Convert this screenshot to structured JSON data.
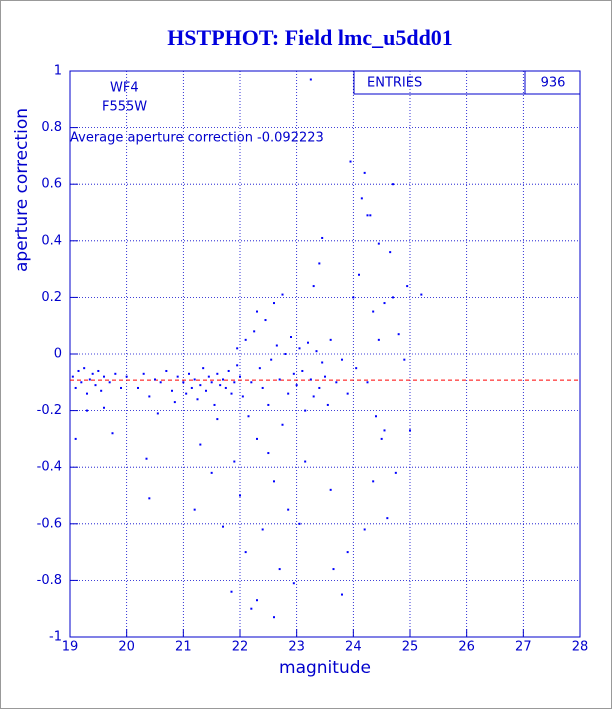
{
  "chart_data": {
    "type": "scatter",
    "title": "HSTPHOT: Field lmc_u5dd01",
    "x_label": "magnitude",
    "y_label": "aperture correction",
    "annotations": [
      "WF4",
      "F555W",
      "Average aperture correction -0.092223"
    ],
    "stats": {
      "label": "ENTRIES",
      "value": 936
    },
    "average_line": -0.092223,
    "average_color": "#ff0000",
    "color": "#0000ff",
    "grid": true,
    "xlim": [
      19,
      28
    ],
    "ylim": [
      -1,
      1
    ],
    "xticks": [
      19,
      20,
      21,
      22,
      23,
      24,
      25,
      26,
      27,
      28
    ],
    "yticks": [
      -1,
      -0.8,
      -0.6,
      -0.4,
      -0.2,
      0,
      0.2,
      0.4,
      0.6,
      0.8,
      1
    ],
    "x": [
      19.05,
      19.1,
      19.15,
      19.2,
      19.25,
      19.3,
      19.35,
      19.4,
      19.45,
      19.5,
      19.55,
      19.6,
      19.7,
      19.8,
      19.9,
      19.1,
      19.3,
      19.6,
      19.75,
      20.0,
      20.2,
      20.3,
      20.4,
      20.5,
      20.6,
      20.7,
      20.8,
      20.9,
      20.35,
      20.4,
      20.55,
      20.85,
      21.0,
      21.05,
      21.1,
      21.15,
      21.2,
      21.25,
      21.3,
      21.35,
      21.4,
      21.45,
      21.5,
      21.55,
      21.6,
      21.65,
      21.7,
      21.75,
      21.8,
      21.85,
      21.9,
      21.95,
      21.2,
      21.3,
      21.5,
      21.6,
      21.7,
      21.85,
      21.9,
      21.95,
      22.0,
      22.05,
      22.1,
      22.15,
      22.2,
      22.25,
      22.3,
      22.35,
      22.4,
      22.45,
      22.5,
      22.55,
      22.6,
      22.65,
      22.7,
      22.75,
      22.8,
      22.85,
      22.9,
      22.95,
      22.0,
      22.1,
      22.2,
      22.3,
      22.4,
      22.5,
      22.6,
      22.7,
      22.85,
      22.95,
      22.3,
      22.6,
      22.75,
      23.0,
      23.05,
      23.1,
      23.15,
      23.2,
      23.25,
      23.3,
      23.35,
      23.4,
      23.45,
      23.5,
      23.55,
      23.6,
      23.7,
      23.8,
      23.9,
      23.05,
      23.15,
      23.25,
      23.3,
      23.4,
      23.45,
      23.6,
      23.65,
      23.8,
      23.9,
      23.95,
      24.0,
      24.05,
      24.1,
      24.15,
      24.2,
      24.25,
      24.3,
      24.35,
      24.4,
      24.45,
      24.5,
      24.55,
      24.6,
      24.65,
      24.7,
      24.75,
      24.8,
      24.9,
      24.95,
      24.2,
      24.45,
      24.55,
      24.7,
      25.0,
      25.2,
      24.25,
      24.35
    ],
    "y": [
      -0.08,
      -0.12,
      -0.06,
      -0.1,
      -0.05,
      -0.14,
      -0.09,
      -0.07,
      -0.11,
      -0.06,
      -0.13,
      -0.08,
      -0.1,
      -0.07,
      -0.12,
      -0.3,
      -0.2,
      -0.19,
      -0.28,
      -0.08,
      -0.12,
      -0.07,
      -0.15,
      -0.09,
      -0.1,
      -0.06,
      -0.13,
      -0.08,
      -0.37,
      -0.51,
      -0.21,
      -0.17,
      -0.1,
      -0.14,
      -0.07,
      -0.12,
      -0.09,
      -0.16,
      -0.11,
      -0.05,
      -0.13,
      -0.08,
      -0.1,
      -0.18,
      -0.07,
      -0.11,
      -0.09,
      -0.12,
      -0.06,
      -0.14,
      -0.1,
      -0.04,
      -0.55,
      -0.32,
      -0.42,
      -0.23,
      -0.61,
      -0.84,
      -0.38,
      0.02,
      -0.08,
      -0.15,
      0.05,
      -0.22,
      -0.1,
      0.08,
      -0.3,
      -0.05,
      -0.12,
      0.12,
      -0.18,
      -0.02,
      -0.45,
      0.03,
      -0.09,
      -0.25,
      0.0,
      -0.14,
      0.06,
      -0.07,
      -0.5,
      -0.7,
      -0.9,
      -0.87,
      -0.62,
      -0.35,
      -0.93,
      -0.76,
      -0.55,
      -0.81,
      0.15,
      0.18,
      0.21,
      -0.11,
      0.02,
      -0.06,
      -0.2,
      0.04,
      -0.09,
      -0.15,
      0.01,
      -0.12,
      -0.03,
      -0.08,
      -0.18,
      0.05,
      -0.1,
      -0.02,
      -0.14,
      -0.6,
      -0.38,
      0.97,
      0.24,
      0.32,
      0.41,
      -0.48,
      -0.76,
      -0.85,
      -0.7,
      0.68,
      0.2,
      -0.05,
      0.28,
      0.55,
      0.64,
      -0.1,
      0.49,
      0.15,
      -0.22,
      0.05,
      -0.3,
      0.18,
      -0.58,
      0.36,
      0.2,
      -0.42,
      0.07,
      -0.02,
      0.24,
      -0.62,
      0.39,
      -0.27,
      0.6,
      -0.27,
      0.21,
      0.49,
      -0.45
    ]
  }
}
